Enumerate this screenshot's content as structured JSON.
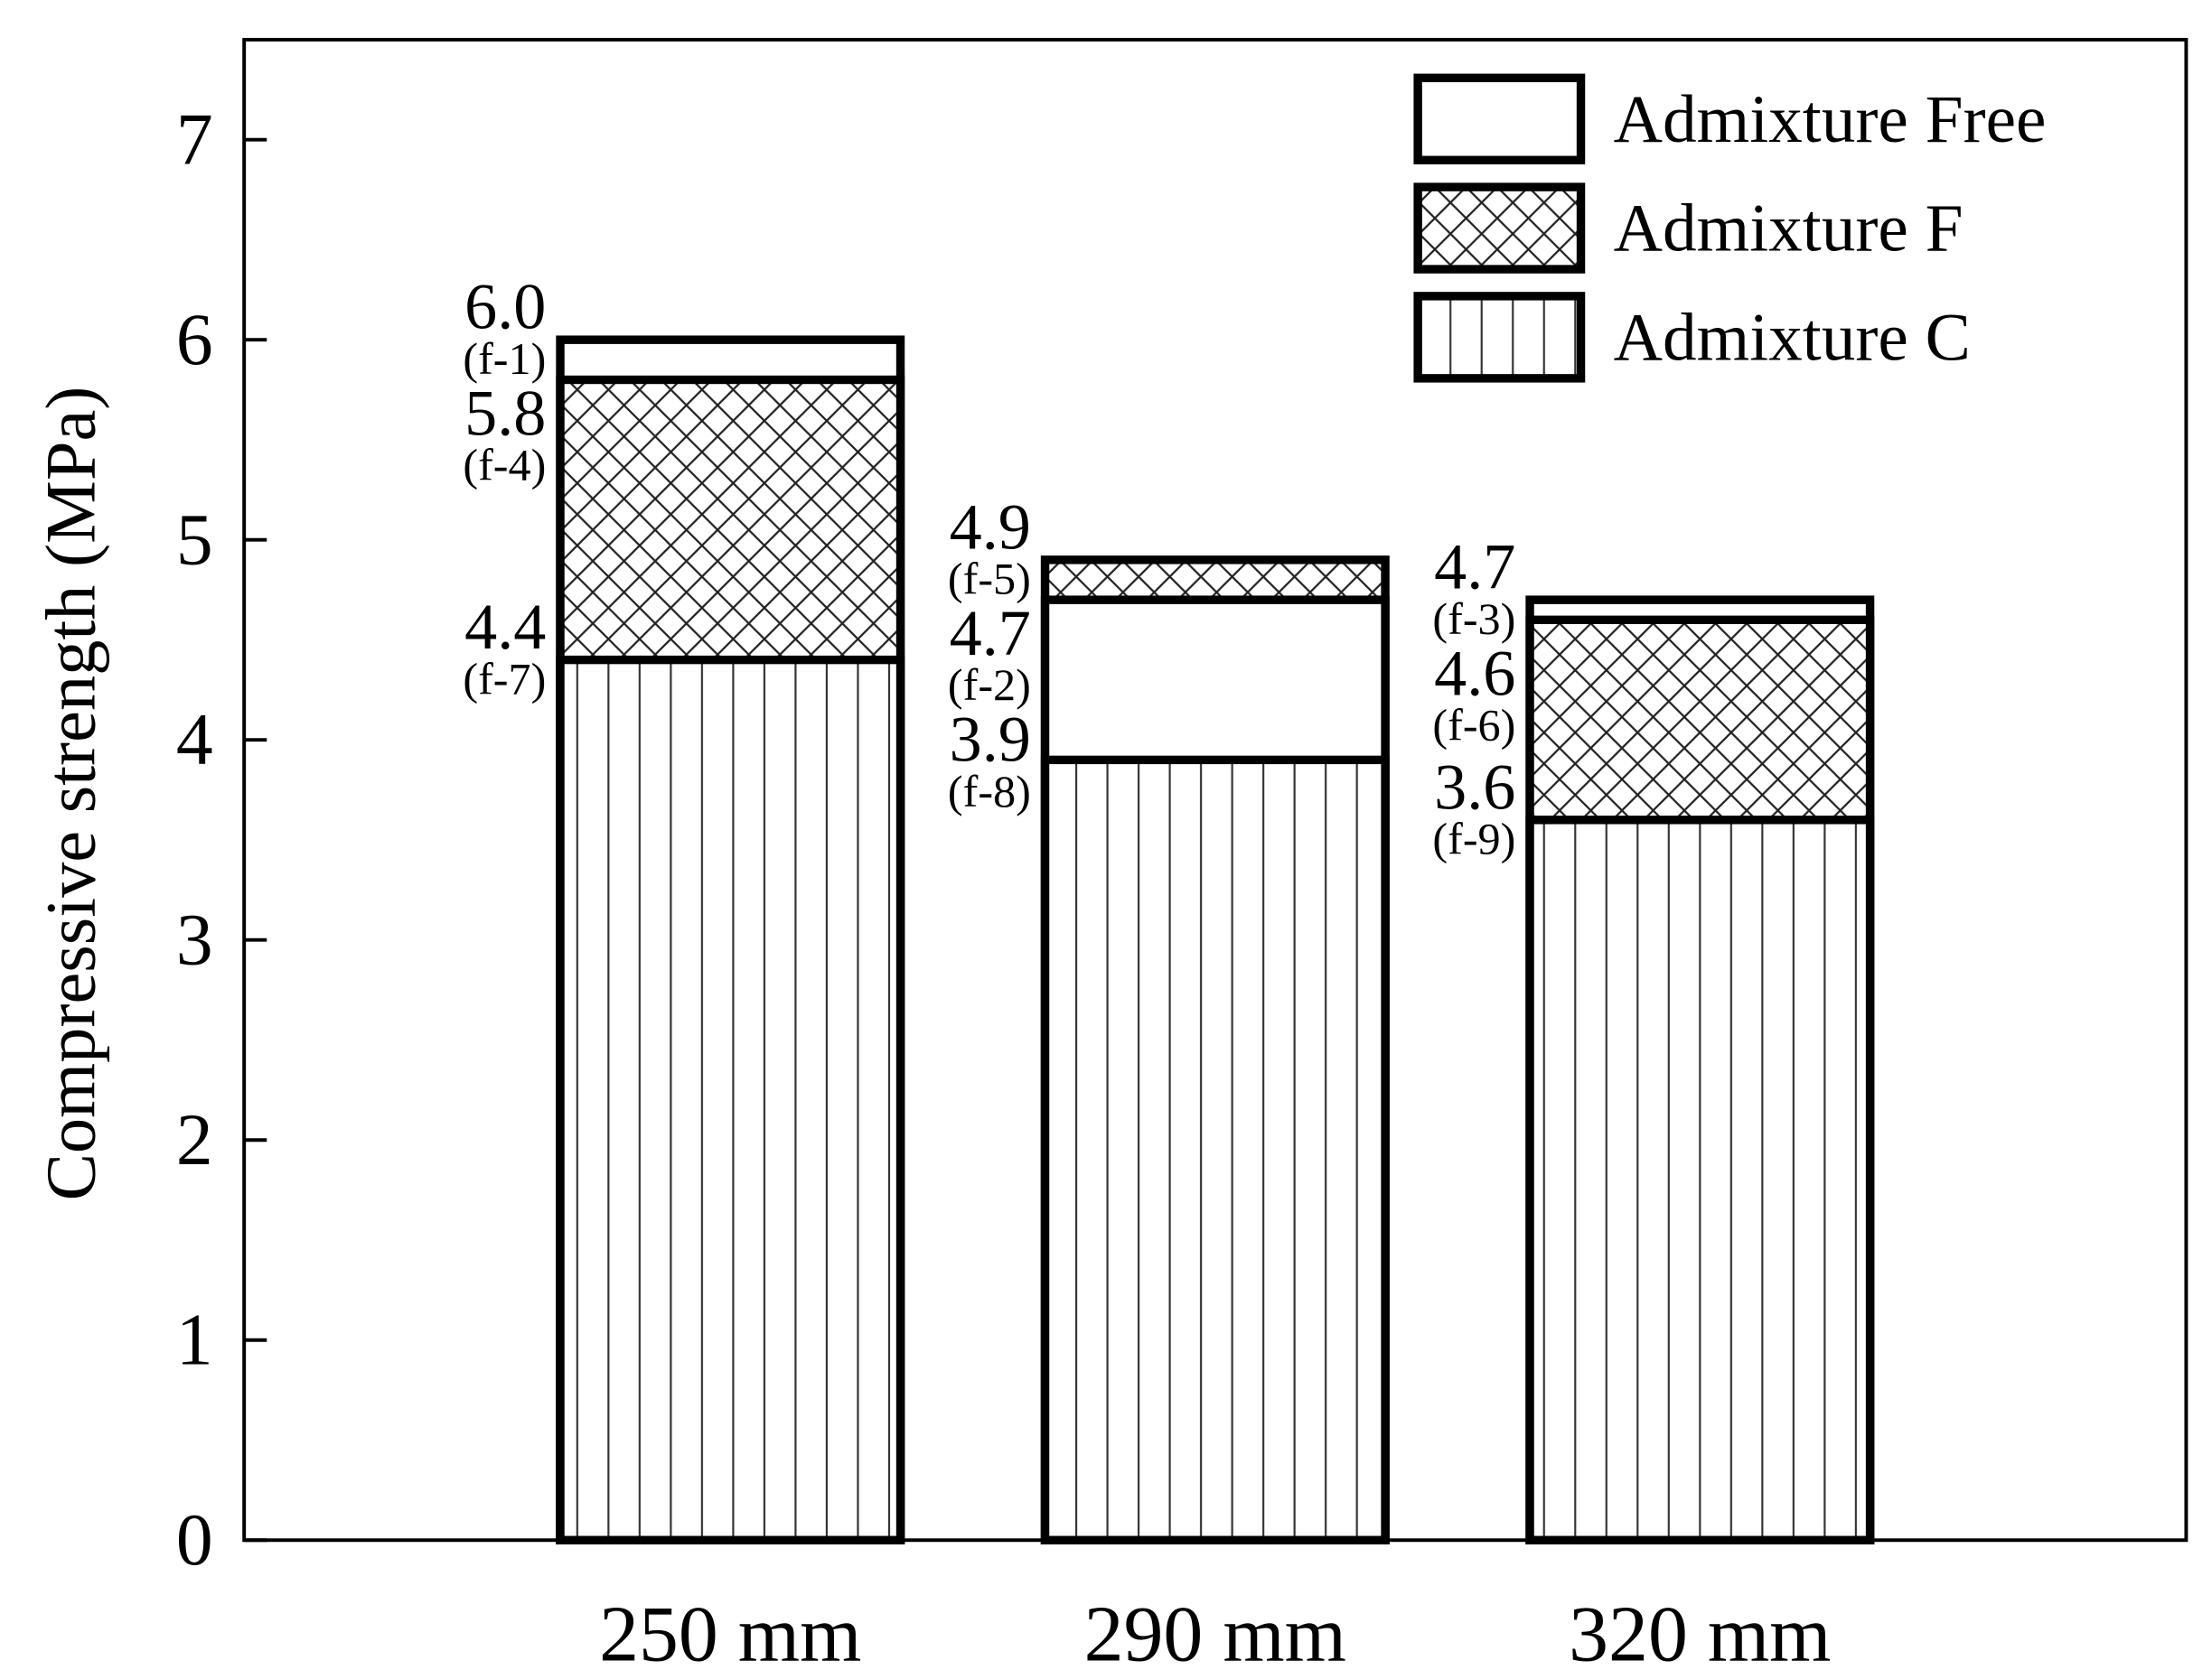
{
  "chart_data": {
    "type": "bar",
    "overlap": true,
    "y_label": "Compressive strength (MPa)",
    "categories": [
      "250 mm",
      "290 mm",
      "320 mm"
    ],
    "series": [
      {
        "name": "Admixture Free",
        "color": "#ffffff",
        "hatch": "none",
        "values": [
          6.0,
          4.7,
          4.7
        ],
        "value_labels": [
          "6.0",
          "4.7",
          "4.7"
        ],
        "tags": [
          "(f-1)",
          "(f-2)",
          "(f-3)"
        ]
      },
      {
        "name": "Admixture F",
        "color": "#ffffff",
        "hatch": "cross",
        "values": [
          5.8,
          4.9,
          4.6
        ],
        "value_labels": [
          "5.8",
          "4.9",
          "4.6"
        ],
        "tags": [
          "(f-4)",
          "(f-5)",
          "(f-6)"
        ]
      },
      {
        "name": "Admixture C",
        "color": "#ffffff",
        "hatch": "vertical",
        "values": [
          4.4,
          3.9,
          3.6
        ],
        "value_labels": [
          "4.4",
          "3.9",
          "3.6"
        ],
        "tags": [
          "(f-7)",
          "(f-8)",
          "(f-9)"
        ]
      }
    ],
    "ylim": [
      0,
      7.5
    ],
    "yticks": [
      0,
      1,
      2,
      3,
      4,
      5,
      6,
      7
    ],
    "grid": false,
    "legend": "top right"
  }
}
